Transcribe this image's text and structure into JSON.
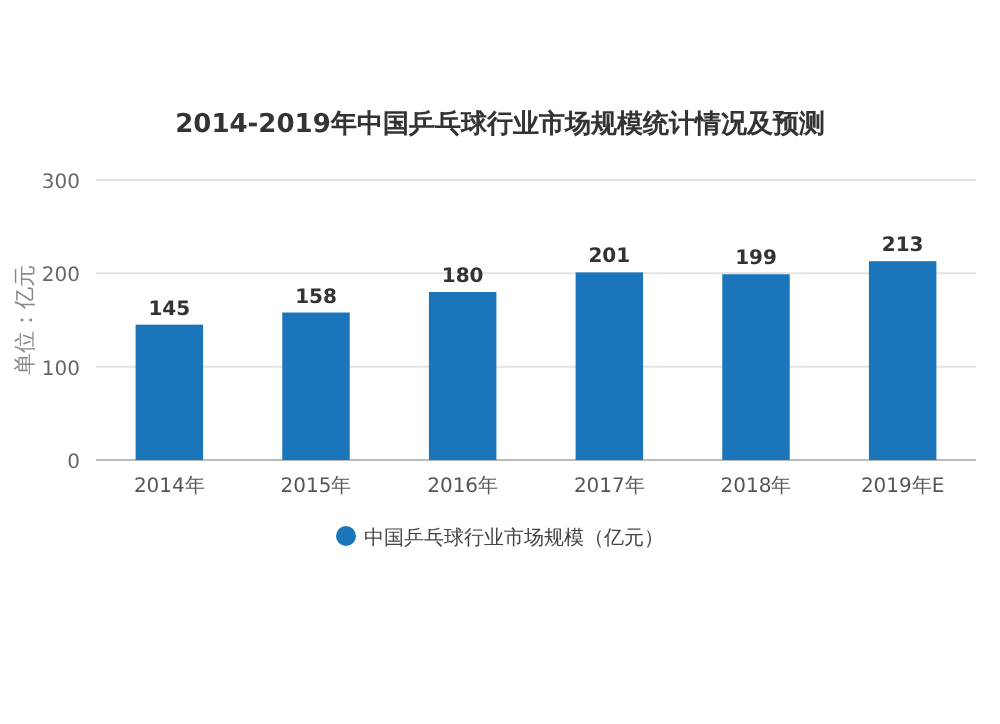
{
  "chart_data": {
    "type": "bar",
    "title": "2014-2019年中国乒乓球行业市场规模统计情况及预测",
    "ylabel": "单位：亿元",
    "categories": [
      "2014年",
      "2015年",
      "2016年",
      "2017年",
      "2018年",
      "2019年E"
    ],
    "series": [
      {
        "name": "中国乒乓球行业市场规模（亿元）",
        "color": "#1a75bb",
        "values": [
          145,
          158,
          180,
          201,
          199,
          213
        ]
      }
    ],
    "ylim": [
      0,
      300
    ],
    "yticks": [
      0,
      100,
      200,
      300
    ],
    "grid": "y",
    "legend": "bottom",
    "data_labels": true
  }
}
